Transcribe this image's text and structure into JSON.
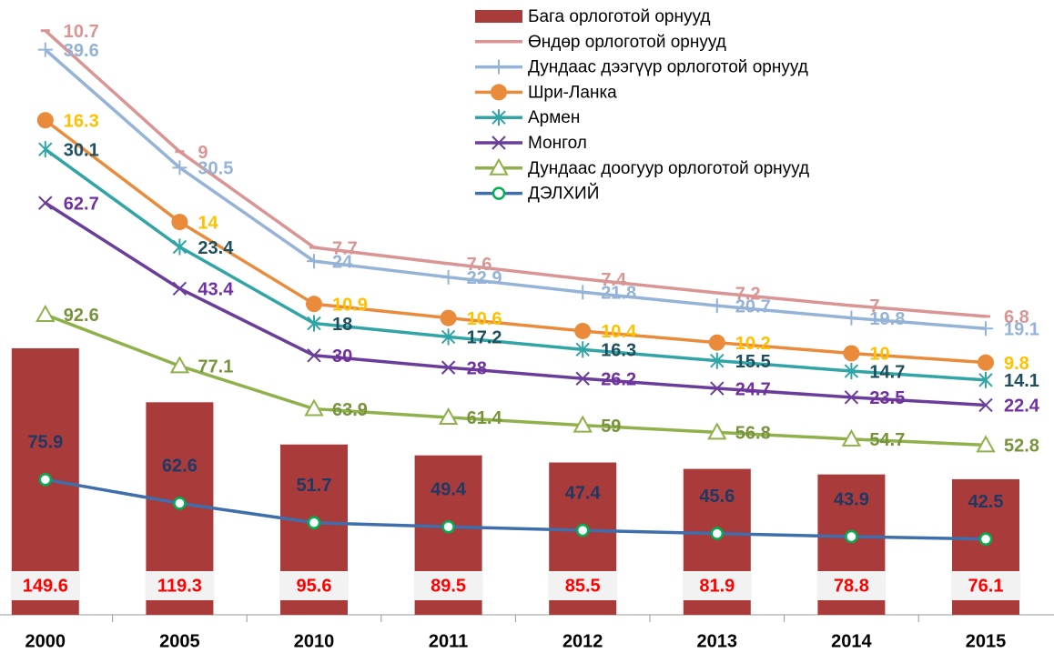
{
  "chart_data": {
    "type": "bar",
    "stacked_lines": true,
    "categories": [
      "2000",
      "2005",
      "2010",
      "2011",
      "2012",
      "2013",
      "2014",
      "2015"
    ],
    "ylim": [
      0,
      340
    ],
    "series": [
      {
        "name": "Бага орлоготой орнууд",
        "type": "bar",
        "color": "#a93b3b",
        "label_color": "#ff0000",
        "values": [
          149.6,
          119.3,
          95.6,
          89.5,
          85.5,
          81.9,
          78.8,
          76.1
        ]
      },
      {
        "name": "Өндөр орлоготой орнууд",
        "type": "line",
        "marker": "dash",
        "color": "#d99594",
        "label_color": "#d99594",
        "values": [
          10.7,
          9,
          7.7,
          7.6,
          7.4,
          7.2,
          7,
          6.8
        ]
      },
      {
        "name": "Дундаас дээгүүр орлоготой орнууд",
        "type": "line",
        "marker": "plus",
        "color": "#95b3d7",
        "label_color": "#95b3d7",
        "values": [
          39.6,
          30.5,
          24,
          22.9,
          21.8,
          20.7,
          19.8,
          19.1
        ]
      },
      {
        "name": "Шри-Ланка",
        "type": "line",
        "marker": "circle",
        "color": "#e98b3a",
        "label_color": "#ffc000",
        "values": [
          16.3,
          14,
          10.9,
          10.6,
          10.4,
          10.2,
          10,
          9.8
        ]
      },
      {
        "name": "Армен",
        "type": "line",
        "marker": "star",
        "color": "#31a5a5",
        "label_color": "#1f4e5f",
        "values": [
          30.1,
          23.4,
          18,
          17.2,
          16.3,
          15.5,
          14.7,
          14.1
        ]
      },
      {
        "name": "Монгол",
        "type": "line",
        "marker": "x",
        "color": "#6a3d9a",
        "label_color": "#7030a0",
        "values": [
          62.7,
          43.4,
          30,
          28,
          26.2,
          24.7,
          23.5,
          22.4
        ]
      },
      {
        "name": "Дундаас доогуур орлоготой орнууд",
        "type": "line",
        "marker": "triangle",
        "color": "#8fb04a",
        "label_color": "#77933c",
        "values": [
          92.6,
          77.1,
          63.9,
          61.4,
          59,
          56.8,
          54.7,
          52.8
        ]
      },
      {
        "name": "ДЭЛХИЙ",
        "type": "line",
        "marker": "ring",
        "color": "#3e6eab",
        "label_color": "#1f3864",
        "values": [
          75.9,
          62.6,
          51.7,
          49.4,
          47.4,
          45.6,
          43.9,
          42.5
        ]
      }
    ]
  }
}
